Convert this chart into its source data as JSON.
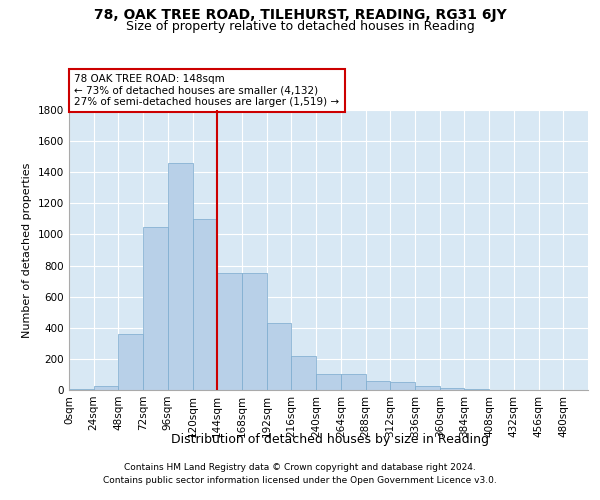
{
  "title": "78, OAK TREE ROAD, TILEHURST, READING, RG31 6JY",
  "subtitle": "Size of property relative to detached houses in Reading",
  "xlabel": "Distribution of detached houses by size in Reading",
  "ylabel": "Number of detached properties",
  "bin_labels": [
    "0sqm",
    "24sqm",
    "48sqm",
    "72sqm",
    "96sqm",
    "120sqm",
    "144sqm",
    "168sqm",
    "192sqm",
    "216sqm",
    "240sqm",
    "264sqm",
    "288sqm",
    "312sqm",
    "336sqm",
    "360sqm",
    "384sqm",
    "408sqm",
    "432sqm",
    "456sqm",
    "480sqm"
  ],
  "bar_values": [
    5,
    25,
    360,
    1050,
    1460,
    1100,
    750,
    750,
    430,
    220,
    105,
    105,
    60,
    50,
    25,
    15,
    5,
    2,
    1,
    0,
    0
  ],
  "bar_color": "#b8d0e8",
  "bar_edge_color": "#7aaace",
  "bar_width": 1.0,
  "vline_x": 6,
  "vline_color": "#cc0000",
  "annotation_text": "78 OAK TREE ROAD: 148sqm\n← 73% of detached houses are smaller (4,132)\n27% of semi-detached houses are larger (1,519) →",
  "annotation_box_color": "#cc0000",
  "ylim": [
    0,
    1800
  ],
  "yticks": [
    0,
    200,
    400,
    600,
    800,
    1000,
    1200,
    1400,
    1600,
    1800
  ],
  "plot_bg_color": "#d8e8f4",
  "grid_color": "#c0d0e0",
  "footer_line1": "Contains HM Land Registry data © Crown copyright and database right 2024.",
  "footer_line2": "Contains public sector information licensed under the Open Government Licence v3.0.",
  "title_fontsize": 10,
  "subtitle_fontsize": 9,
  "xlabel_fontsize": 9,
  "ylabel_fontsize": 8,
  "tick_fontsize": 7.5
}
